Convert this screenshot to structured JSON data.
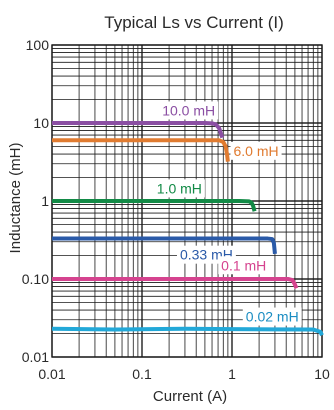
{
  "chart_data": {
    "type": "line",
    "title": "Typical Ls vs Current (I)",
    "xlabel": "Current (A)",
    "ylabel": "Inductance (mH)",
    "x_scale": "log",
    "y_scale": "log",
    "xlim": [
      0.01,
      10
    ],
    "ylim": [
      0.01,
      100
    ],
    "grid": true,
    "legend": "none",
    "x_ticks": [
      {
        "value": 0.01,
        "label": "0.01"
      },
      {
        "value": 0.1,
        "label": "0.1"
      },
      {
        "value": 1,
        "label": "1"
      },
      {
        "value": 10,
        "label": "10"
      }
    ],
    "y_ticks": [
      {
        "value": 100,
        "label": "100"
      },
      {
        "value": 10,
        "label": "10"
      },
      {
        "value": 1,
        "label": "1"
      },
      {
        "value": 0.1,
        "label": "0.10"
      },
      {
        "value": 0.01,
        "label": "0.01"
      }
    ],
    "series": [
      {
        "label": "10.0 mH",
        "color": "#8b4fa3",
        "label_color": "#8b4fa3",
        "x": [
          0.01,
          0.3,
          0.5,
          0.6,
          0.66,
          0.72,
          0.78
        ],
        "y": [
          10,
          10,
          10,
          9.9,
          9.6,
          8.6,
          6.5
        ]
      },
      {
        "label": "6.0 mH",
        "color": "#e07b30",
        "label_color": "#e07b30",
        "x": [
          0.01,
          0.5,
          0.72,
          0.8,
          0.85,
          0.88,
          0.9
        ],
        "y": [
          6,
          6,
          6,
          5.7,
          5,
          4,
          3.2
        ]
      },
      {
        "label": "1.0 mH",
        "color": "#128a46",
        "label_color": "#128a46",
        "x": [
          0.01,
          1.2,
          1.55,
          1.65,
          1.72,
          1.78
        ],
        "y": [
          1,
          1,
          0.99,
          0.95,
          0.86,
          0.74
        ]
      },
      {
        "label": "0.33 mH",
        "color": "#2a5aa8",
        "label_color": "#2a5aa8",
        "x": [
          0.01,
          2.5,
          2.8,
          2.92,
          3.0
        ],
        "y": [
          0.33,
          0.33,
          0.325,
          0.29,
          0.21
        ]
      },
      {
        "label": "0.1 mH",
        "color": "#d5438f",
        "label_color": "#d5438f",
        "x": [
          0.01,
          4.2,
          4.7,
          5.0,
          5.2
        ],
        "y": [
          0.1,
          0.1,
          0.097,
          0.085,
          0.076
        ]
      },
      {
        "label": "0.02 mH",
        "color": "#22a8d8",
        "label_color": "#1b8dc2",
        "x": [
          0.01,
          0.05,
          0.3,
          1,
          3,
          8,
          9.6,
          10
        ],
        "y": [
          0.023,
          0.0225,
          0.023,
          0.0228,
          0.0226,
          0.0225,
          0.021,
          0.019
        ]
      }
    ]
  }
}
